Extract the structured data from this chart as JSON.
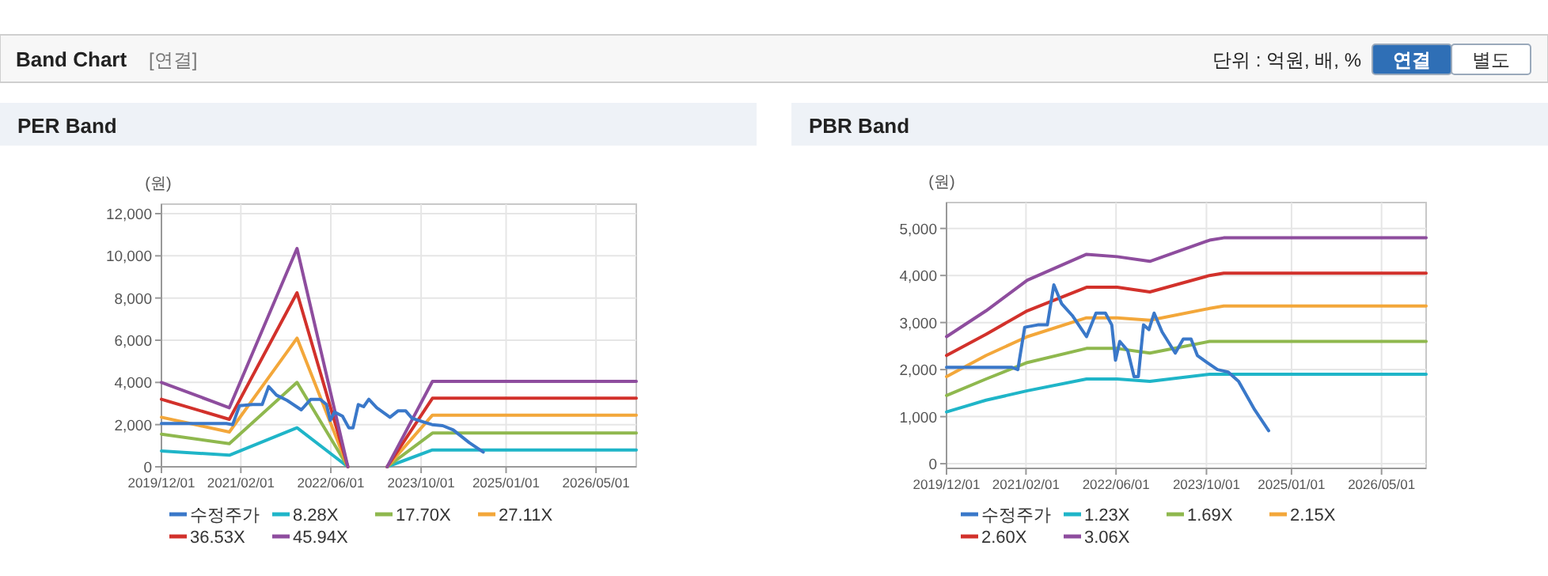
{
  "chart_data": [
    {
      "type": "other",
      "annotations": [
        "Band Chart",
        "[연결]",
        "단위 : 억원, 배, %",
        "연결",
        "별도"
      ]
    },
    {
      "type": "line",
      "title": "PER Band",
      "ylabel": "(원)",
      "grid": true,
      "legend": "bottom",
      "marker": "none",
      "line_style": "solid",
      "xlim": [
        "2019-12-01",
        "2026-12-04"
      ],
      "ylim": [
        0,
        12450
      ],
      "xticks": [
        {
          "value": "2019-12-01",
          "label": "2019/12/01"
        },
        {
          "value": "2021-02-01",
          "label": "2021/02/01"
        },
        {
          "value": "2022-06-01",
          "label": "2022/06/01"
        },
        {
          "value": "2023-10-01",
          "label": "2023/10/01"
        },
        {
          "value": "2025-01-01",
          "label": "2025/01/01"
        },
        {
          "value": "2026-05-01",
          "label": "2026/05/01"
        }
      ],
      "yticks": [
        {
          "value": 0,
          "label": "0"
        },
        {
          "value": 2000,
          "label": "2,000"
        },
        {
          "value": 4000,
          "label": "4,000"
        },
        {
          "value": 6000,
          "label": "6,000"
        },
        {
          "value": 8000,
          "label": "8,000"
        },
        {
          "value": 10000,
          "label": "10,000"
        },
        {
          "value": 12000,
          "label": "12,000"
        }
      ],
      "x": [
        "2019-12-01",
        "2020-12-01",
        "2021-12-01",
        "2022-09-01",
        "2023-01-01",
        "2023-04-01",
        "2023-12-01",
        "2026-12-04"
      ],
      "series": [
        {
          "name": "수정주가",
          "color": "#3a78c9",
          "x": [
            "2019-12-01",
            "2020-11-15",
            "2020-12-19",
            "2021-01-25",
            "2021-04-06",
            "2021-05-27",
            "2021-07-01",
            "2021-08-12",
            "2021-10-08",
            "2021-12-24",
            "2022-02-13",
            "2022-04-05",
            "2022-05-09",
            "2022-05-29",
            "2022-06-21",
            "2022-08-03",
            "2022-09-06",
            "2022-09-29",
            "2022-10-27",
            "2022-11-25",
            "2022-12-23",
            "2023-02-04",
            "2023-04-16",
            "2023-05-29",
            "2023-07-10",
            "2023-08-13",
            "2023-10-04",
            "2023-11-29",
            "2024-01-25",
            "2024-03-22",
            "2024-06-16",
            "2024-08-31"
          ],
          "values": [
            2050,
            2050,
            2000,
            2900,
            2950,
            2950,
            3800,
            3400,
            3150,
            2700,
            3200,
            3200,
            2950,
            2200,
            2600,
            2400,
            1850,
            1850,
            2950,
            2850,
            3200,
            2800,
            2350,
            2650,
            2650,
            2300,
            2150,
            2000,
            1950,
            1750,
            1150,
            700
          ]
        },
        {
          "name": "8.28X",
          "color": "#1fb5c8",
          "values": [
            750,
            550,
            1850,
            0,
            null,
            0,
            800,
            800
          ]
        },
        {
          "name": "17.70X",
          "color": "#8fb84e",
          "values": [
            1550,
            1100,
            4000,
            0,
            null,
            0,
            1600,
            1600
          ]
        },
        {
          "name": "27.11X",
          "color": "#f3a73a",
          "values": [
            2350,
            1650,
            6100,
            0,
            null,
            0,
            2450,
            2450
          ]
        },
        {
          "name": "36.53X",
          "color": "#d2312b",
          "values": [
            3200,
            2250,
            8250,
            0,
            null,
            0,
            3250,
            3250
          ]
        },
        {
          "name": "45.94X",
          "color": "#8e4d9e",
          "values": [
            4000,
            2800,
            10350,
            0,
            null,
            0,
            4050,
            4050
          ]
        }
      ]
    },
    {
      "type": "line",
      "title": "PBR Band",
      "ylabel": "(원)",
      "grid": true,
      "legend": "bottom",
      "marker": "none",
      "line_style": "solid",
      "xlim": [
        "2019-12-01",
        "2026-12-27"
      ],
      "ylim": [
        -100,
        5550
      ],
      "xticks": [
        {
          "value": "2019-12-01",
          "label": "2019/12/01"
        },
        {
          "value": "2021-02-01",
          "label": "2021/02/01"
        },
        {
          "value": "2022-06-01",
          "label": "2022/06/01"
        },
        {
          "value": "2023-10-01",
          "label": "2023/10/01"
        },
        {
          "value": "2025-01-01",
          "label": "2025/01/01"
        },
        {
          "value": "2026-05-01",
          "label": "2026/05/01"
        }
      ],
      "yticks": [
        {
          "value": 0,
          "label": "0"
        },
        {
          "value": 1000,
          "label": "1,000"
        },
        {
          "value": 2000,
          "label": "2,000"
        },
        {
          "value": 3000,
          "label": "3,000"
        },
        {
          "value": 4000,
          "label": "4,000"
        },
        {
          "value": 5000,
          "label": "5,000"
        }
      ],
      "x": [
        "2019-12-01",
        "2020-07-01",
        "2021-02-08",
        "2021-12-24",
        "2022-06-07",
        "2022-11-30",
        "2023-10-18",
        "2024-01-02",
        "2026-12-27"
      ],
      "series": [
        {
          "name": "수정주가",
          "color": "#3a78c9",
          "x": [
            "2019-12-01",
            "2020-11-15",
            "2020-12-19",
            "2021-01-25",
            "2021-04-06",
            "2021-05-27",
            "2021-07-01",
            "2021-08-12",
            "2021-10-08",
            "2021-12-24",
            "2022-02-13",
            "2022-04-05",
            "2022-05-09",
            "2022-05-29",
            "2022-06-21",
            "2022-08-03",
            "2022-09-06",
            "2022-09-29",
            "2022-10-27",
            "2022-11-25",
            "2022-12-23",
            "2023-02-04",
            "2023-04-16",
            "2023-05-29",
            "2023-07-10",
            "2023-08-13",
            "2023-10-04",
            "2023-11-29",
            "2024-01-25",
            "2024-03-22",
            "2024-06-16",
            "2024-08-31"
          ],
          "values": [
            2050,
            2050,
            2000,
            2900,
            2950,
            2950,
            3800,
            3400,
            3150,
            2700,
            3200,
            3200,
            2950,
            2200,
            2600,
            2400,
            1850,
            1850,
            2950,
            2850,
            3200,
            2800,
            2350,
            2650,
            2650,
            2300,
            2150,
            2000,
            1950,
            1750,
            1150,
            700
          ]
        },
        {
          "name": "1.23X",
          "color": "#1fb5c8",
          "values": [
            1100,
            1350,
            1550,
            1800,
            1800,
            1750,
            1900,
            1900,
            1900
          ]
        },
        {
          "name": "1.69X",
          "color": "#8fb84e",
          "values": [
            1450,
            1800,
            2150,
            2450,
            2450,
            2350,
            2600,
            2600,
            2600
          ]
        },
        {
          "name": "2.15X",
          "color": "#f3a73a",
          "values": [
            1850,
            2300,
            2700,
            3100,
            3100,
            3050,
            3300,
            3350,
            3350
          ]
        },
        {
          "name": "2.60X",
          "color": "#d2312b",
          "values": [
            2300,
            2750,
            3250,
            3750,
            3750,
            3650,
            4000,
            4050,
            4050
          ]
        },
        {
          "name": "3.06X",
          "color": "#8e4d9e",
          "values": [
            2700,
            3250,
            3900,
            4450,
            4400,
            4300,
            4750,
            4800,
            4800
          ]
        }
      ]
    }
  ]
}
